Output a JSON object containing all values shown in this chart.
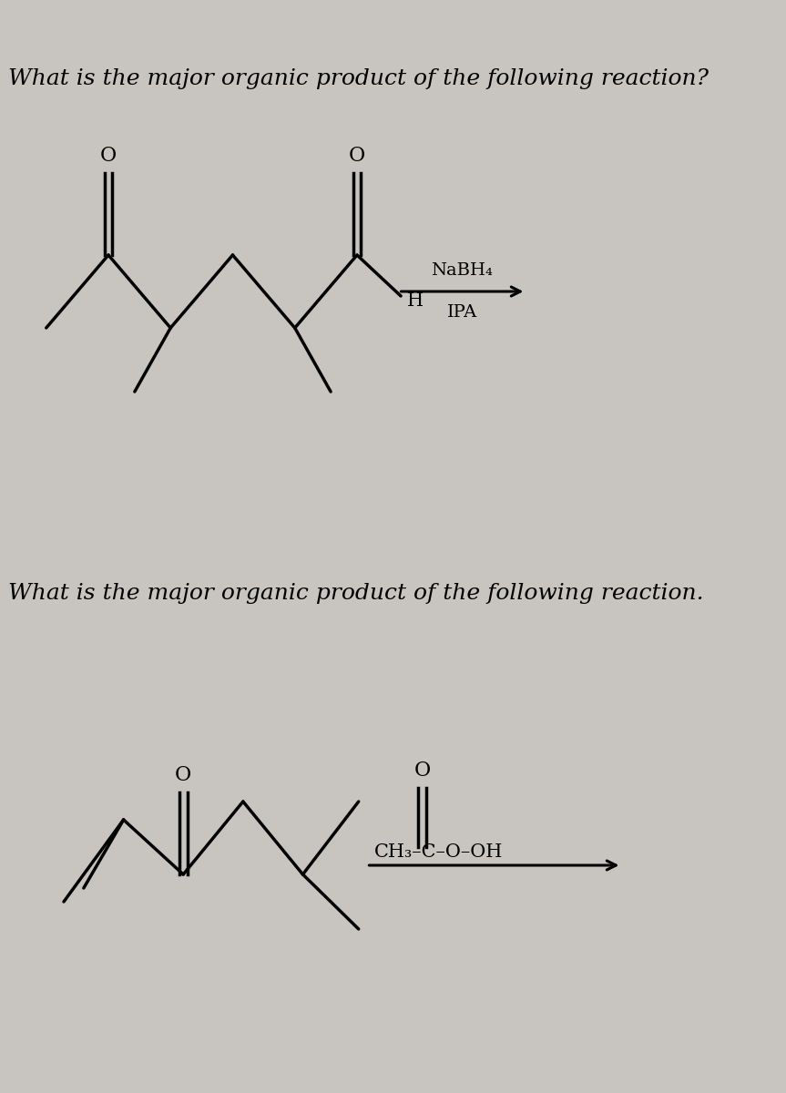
{
  "bg_color": "#c8c5c0",
  "text_color": "#000000",
  "question1": "What is the major organic product of the following reaction?",
  "question2": "What is the major organic product of the following reaction.",
  "nabh4": "NaBH₄",
  "ipa": "IPA",
  "reagent2": "CH₃–C–O–OH",
  "lw": 2.5
}
